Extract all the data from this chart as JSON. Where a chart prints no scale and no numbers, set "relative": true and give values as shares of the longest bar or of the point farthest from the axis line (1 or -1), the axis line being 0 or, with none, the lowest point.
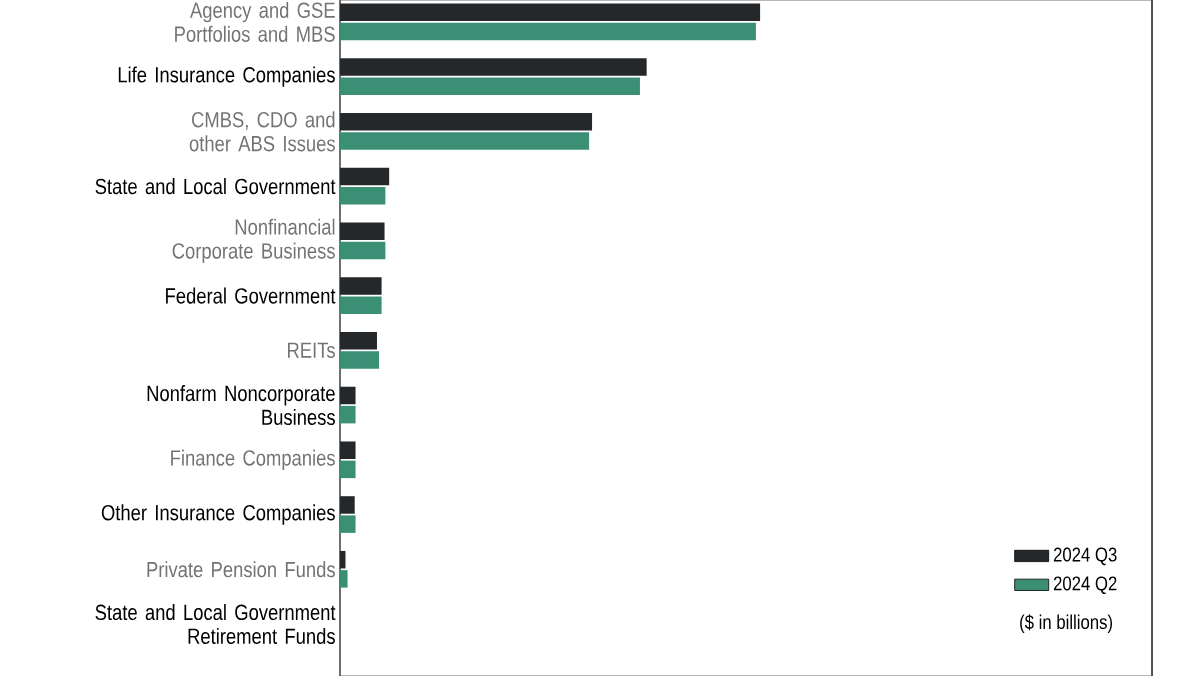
{
  "chart_data": {
    "type": "bar",
    "orientation": "horizontal",
    "relative": true,
    "legend": "bottom right",
    "categories": [
      "Agency and GSE Portfolios and MBS",
      "Life Insurance Companies",
      "CMBS, CDO and other ABS Issues",
      "State and Local Government",
      "Nonfinancial Corporate Business",
      "Federal Government",
      "REITs",
      "Nonfarm Noncorporate Business",
      "Finance Companies",
      "Other Insurance Companies",
      "Private Pension Funds",
      "State and Local Government Retirement Funds"
    ],
    "series": [
      {
        "name": "2024 Q3",
        "color": "#25282b",
        "values": [
          1,
          0.73,
          0.6,
          0.117,
          0.106,
          0.099,
          0.088,
          0.037,
          0.037,
          0.035,
          0.013,
          null
        ]
      },
      {
        "name": "2024 Q2",
        "color": "#3a8f74",
        "values": [
          0.99,
          0.714,
          0.593,
          0.108,
          0.108,
          0.099,
          0.093,
          0.037,
          0.037,
          0.037,
          0.018,
          null
        ]
      }
    ],
    "annotations": [
      "($ in billions)"
    ]
  }
}
